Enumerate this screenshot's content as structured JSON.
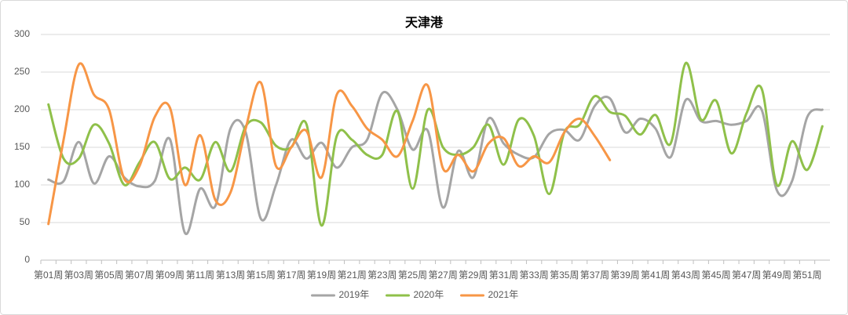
{
  "chart_data": {
    "type": "line",
    "title": "天津港",
    "categories": [
      "第01周",
      null,
      "第03周",
      null,
      "第05周",
      null,
      "第07周",
      null,
      "第09周",
      null,
      "第11周",
      null,
      "第13周",
      null,
      "第15周",
      null,
      "第17周",
      null,
      "第19周",
      null,
      "第21周",
      null,
      "第23周",
      null,
      "第25周",
      null,
      "第27周",
      null,
      "第29周",
      null,
      "第31周",
      null,
      "第33周",
      null,
      "第35周",
      null,
      "第37周",
      null,
      "第39周",
      null,
      "第41周",
      null,
      "第43周",
      null,
      "第45周",
      null,
      "第47周",
      null,
      "第49周",
      null,
      "第51周",
      null
    ],
    "series": [
      {
        "name": "2019年",
        "color": "#a5a5a5",
        "values": [
          107,
          105,
          157,
          102,
          138,
          110,
          98,
          105,
          161,
          36,
          95,
          72,
          175,
          170,
          55,
          100,
          160,
          135,
          156,
          123,
          150,
          160,
          222,
          200,
          147,
          172,
          70,
          145,
          110,
          188,
          155,
          140,
          137,
          168,
          173,
          160,
          205,
          215,
          170,
          188,
          175,
          137,
          213,
          185,
          185,
          180,
          185,
          200,
          93,
          105,
          190,
          200
        ]
      },
      {
        "name": "2020年",
        "color": "#8fc04a",
        "values": [
          207,
          135,
          135,
          180,
          155,
          100,
          130,
          157,
          108,
          123,
          107,
          157,
          118,
          178,
          183,
          152,
          150,
          181,
          46,
          165,
          160,
          140,
          140,
          198,
          95,
          200,
          150,
          140,
          150,
          180,
          127,
          187,
          165,
          88,
          170,
          180,
          218,
          197,
          192,
          167,
          193,
          155,
          262,
          187,
          212,
          142,
          195,
          228,
          100,
          158,
          120,
          178
        ]
      },
      {
        "name": "2021年",
        "color": "#f79646",
        "values": [
          48,
          160,
          260,
          220,
          200,
          108,
          125,
          190,
          203,
          100,
          166,
          80,
          90,
          175,
          236,
          125,
          150,
          172,
          110,
          220,
          205,
          175,
          160,
          138,
          185,
          232,
          122,
          140,
          118,
          155,
          162,
          125,
          138,
          130,
          170,
          188,
          165,
          133,
          null,
          null,
          null,
          null,
          null,
          null,
          null,
          null,
          null,
          null,
          null,
          null,
          null,
          null
        ]
      }
    ],
    "ylim": [
      0,
      300
    ],
    "yticks": [
      0,
      50,
      100,
      150,
      200,
      250,
      300
    ],
    "grid": true,
    "legend": "bottom",
    "smooth": true
  }
}
